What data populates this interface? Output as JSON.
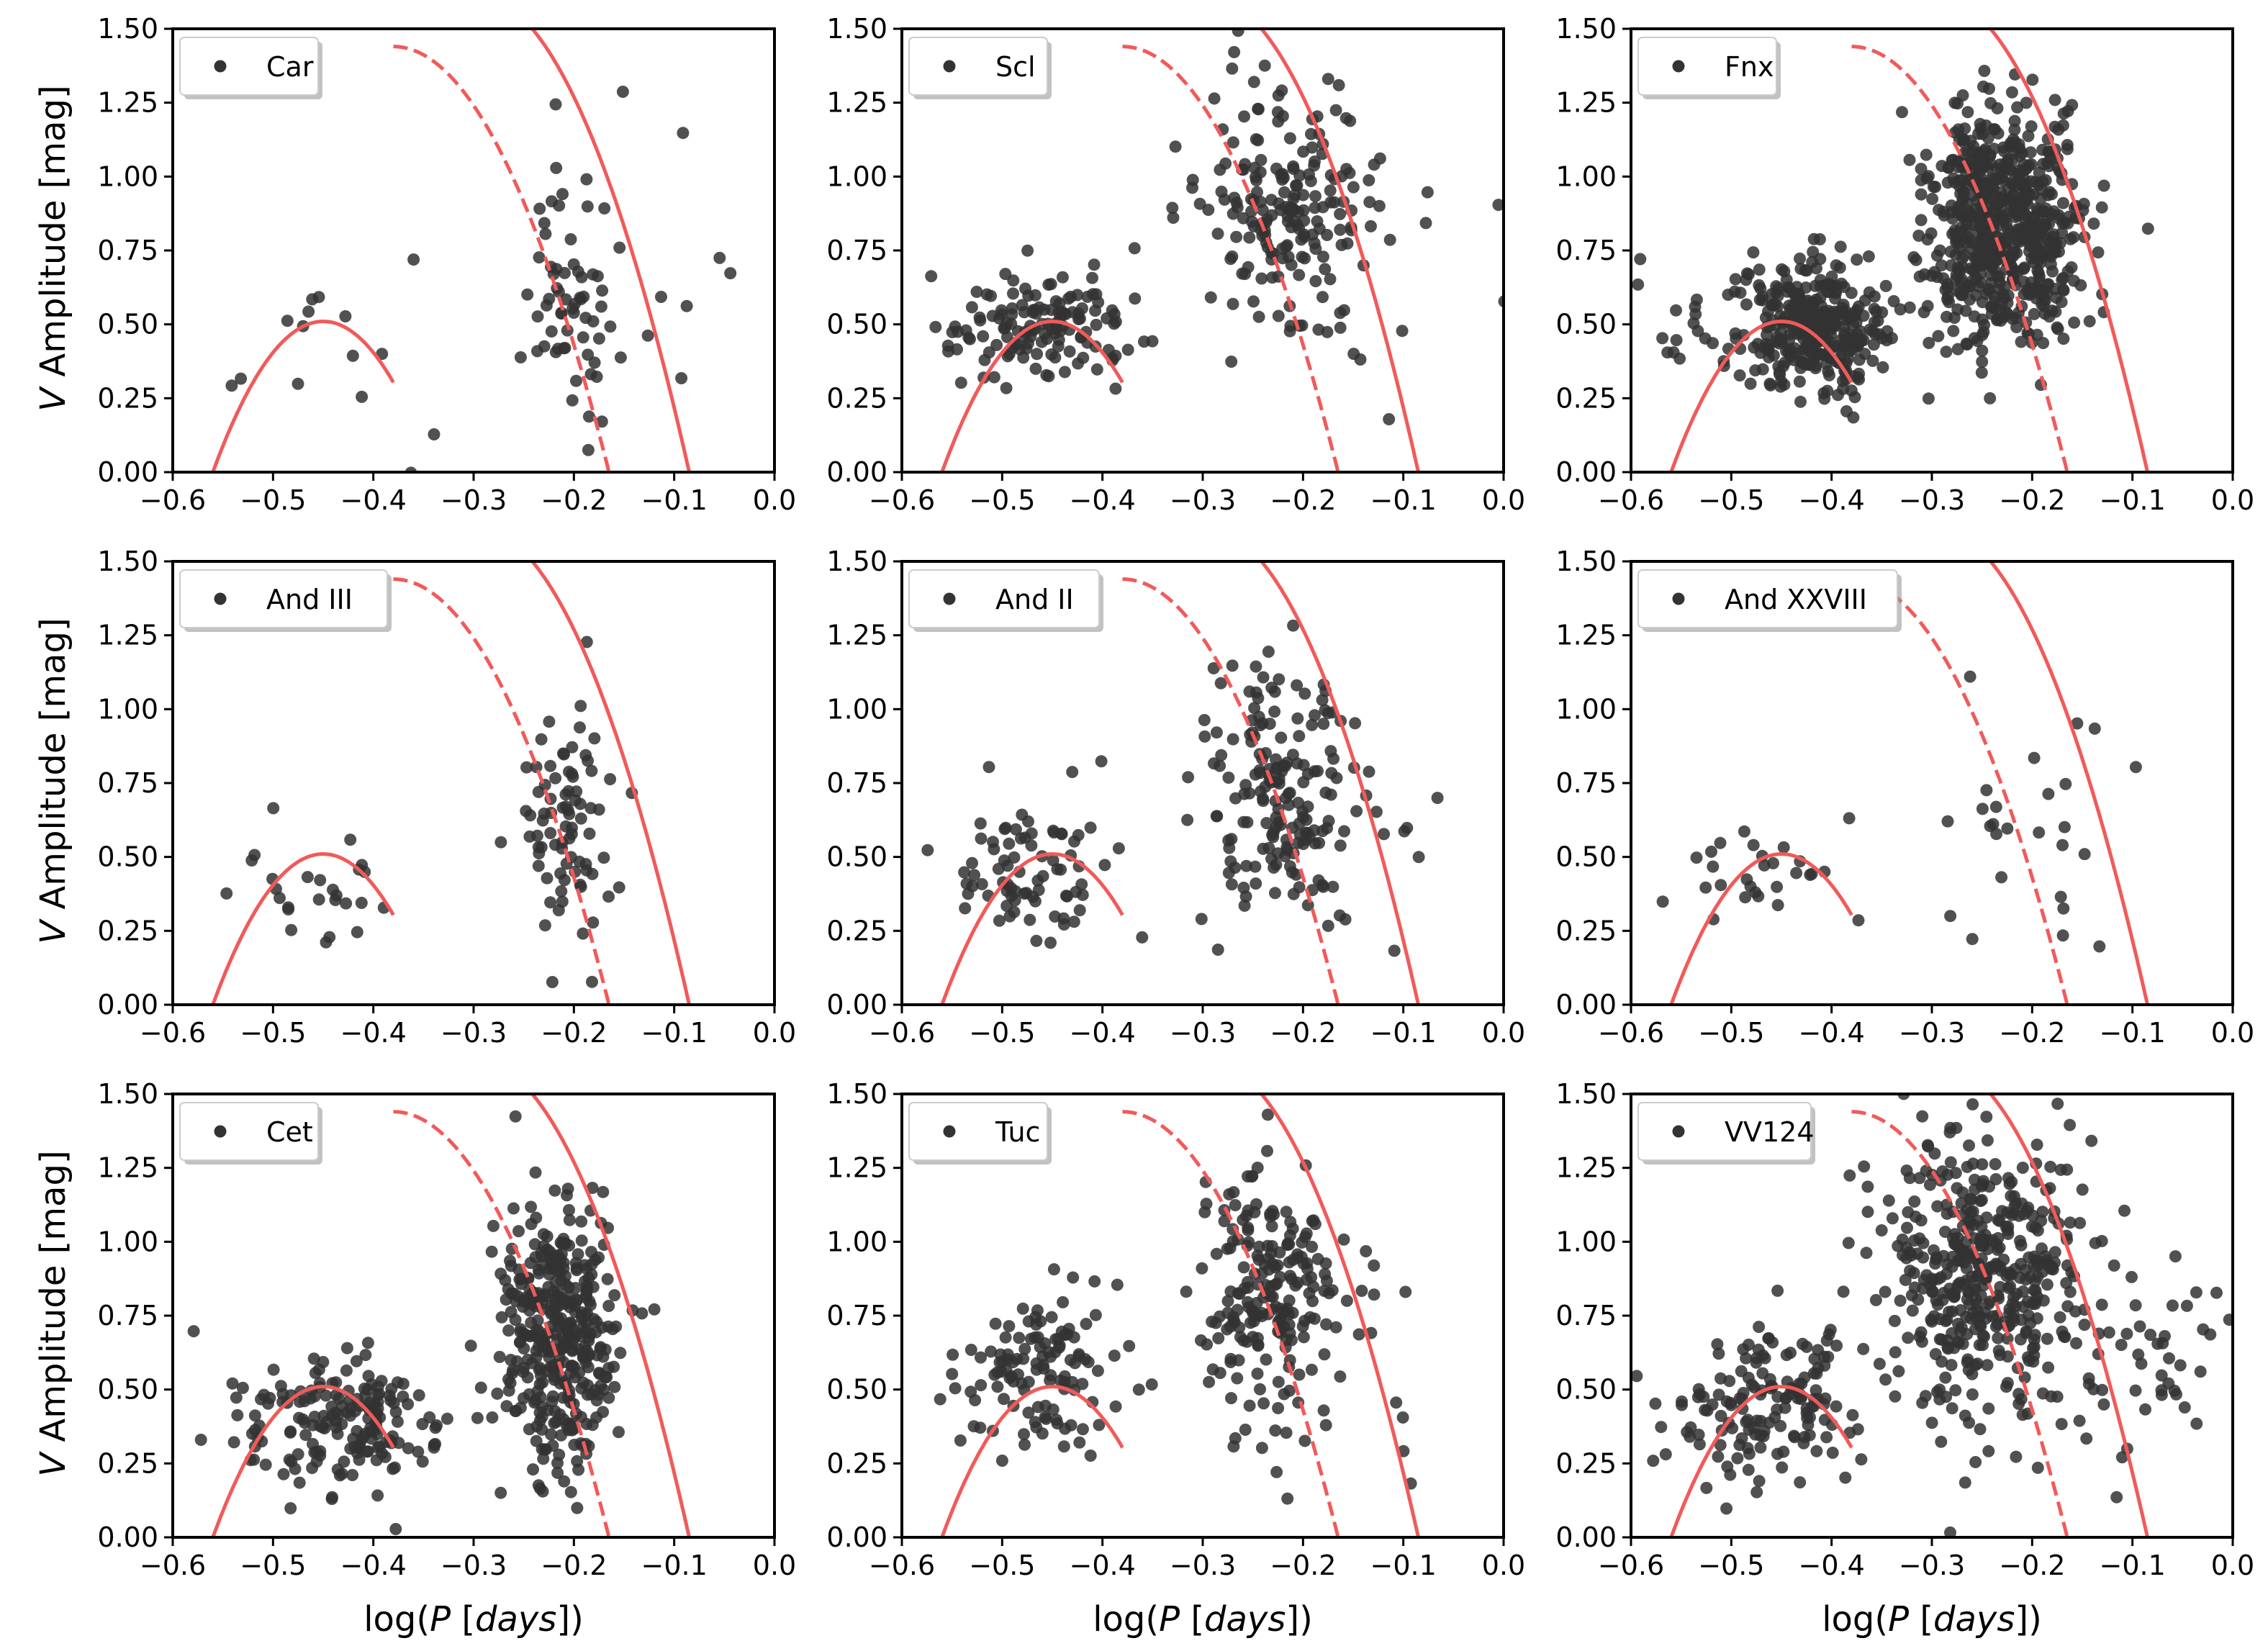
{
  "figure": {
    "ylabel_prefix": "V",
    "ylabel_rest": " Amplitude [mag]",
    "xlabel_pre": "log(",
    "xlabel_P": "P",
    "xlabel_mid": " [",
    "xlabel_days": "days",
    "xlabel_post": "])"
  },
  "colors": {
    "points": "#333333",
    "curve": "#f15a5a",
    "frame": "#000000"
  },
  "chart_data": [
    {
      "type": "scatter",
      "legend": "Car",
      "xlim": [
        -0.6,
        0.0
      ],
      "ylim": [
        0.0,
        1.5
      ],
      "xticks": [
        "−0.6",
        "−0.5",
        "−0.4",
        "−0.3",
        "−0.2",
        "−0.1",
        "0.0"
      ],
      "yticks": [
        "0.00",
        "0.25",
        "0.50",
        "0.75",
        "1.00",
        "1.25",
        "1.50"
      ],
      "curves": {
        "oo1_parabola": {
          "x_range": [
            -0.56,
            -0.38
          ],
          "vertex_x": -0.45,
          "vertex_y": 0.51
        },
        "oo1_steep_dashed": {
          "x_range": [
            -0.38,
            -0.165
          ]
        },
        "oo2_steep_solid": {
          "x_range": [
            -0.3,
            -0.085
          ]
        }
      },
      "seed": 101,
      "clusters": [
        {
          "n": 16,
          "cx": -0.45,
          "cy": 0.35,
          "sx": 0.055,
          "sy": 0.18
        },
        {
          "n": 58,
          "cx": -0.205,
          "cy": 0.6,
          "sx": 0.022,
          "sy": 0.22
        },
        {
          "n": 14,
          "cx": -0.12,
          "cy": 0.7,
          "sx": 0.08,
          "sy": 0.28
        }
      ]
    },
    {
      "type": "scatter",
      "legend": "Scl",
      "xlim": [
        -0.6,
        0.0
      ],
      "ylim": [
        0.0,
        1.5
      ],
      "xticks": [
        "−0.6",
        "−0.5",
        "−0.4",
        "−0.3",
        "−0.2",
        "−0.1",
        "0.0"
      ],
      "yticks": [
        "0.00",
        "0.25",
        "0.50",
        "0.75",
        "1.00",
        "1.25",
        "1.50"
      ],
      "curves": {
        "oo1_parabola": {
          "x_range": [
            -0.56,
            -0.38
          ],
          "vertex_x": -0.45,
          "vertex_y": 0.51
        },
        "oo1_steep_dashed": {
          "x_range": [
            -0.38,
            -0.165
          ]
        },
        "oo2_steep_solid": {
          "x_range": [
            -0.3,
            -0.085
          ]
        }
      },
      "seed": 202,
      "clusters": [
        {
          "n": 140,
          "cx": -0.46,
          "cy": 0.49,
          "sx": 0.045,
          "sy": 0.09
        },
        {
          "n": 190,
          "cx": -0.22,
          "cy": 0.9,
          "sx": 0.045,
          "sy": 0.22
        },
        {
          "n": 12,
          "cx": -0.1,
          "cy": 0.55,
          "sx": 0.06,
          "sy": 0.3
        }
      ]
    },
    {
      "type": "scatter",
      "legend": "Fnx",
      "xlim": [
        -0.6,
        0.0
      ],
      "ylim": [
        0.0,
        1.5
      ],
      "xticks": [
        "−0.6",
        "−0.5",
        "−0.4",
        "−0.3",
        "−0.2",
        "−0.1",
        "0.0"
      ],
      "yticks": [
        "0.00",
        "0.25",
        "0.50",
        "0.75",
        "1.00",
        "1.25",
        "1.50"
      ],
      "curves": {
        "oo1_parabola": {
          "x_range": [
            -0.56,
            -0.38
          ],
          "vertex_x": -0.45,
          "vertex_y": 0.51
        },
        "oo1_steep_dashed": {
          "x_range": [
            -0.38,
            -0.165
          ]
        },
        "oo2_steep_solid": {
          "x_range": [
            -0.3,
            -0.085
          ]
        }
      },
      "seed": 303,
      "clusters": [
        {
          "n": 330,
          "cx": -0.42,
          "cy": 0.5,
          "sx": 0.035,
          "sy": 0.11
        },
        {
          "n": 650,
          "cx": -0.23,
          "cy": 0.82,
          "sx": 0.04,
          "sy": 0.2
        },
        {
          "n": 20,
          "cx": -0.53,
          "cy": 0.5,
          "sx": 0.04,
          "sy": 0.08
        }
      ]
    },
    {
      "type": "scatter",
      "legend": "And III",
      "xlim": [
        -0.6,
        0.0
      ],
      "ylim": [
        0.0,
        1.5
      ],
      "xticks": [
        "−0.6",
        "−0.5",
        "−0.4",
        "−0.3",
        "−0.2",
        "−0.1",
        "0.0"
      ],
      "yticks": [
        "0.00",
        "0.25",
        "0.50",
        "0.75",
        "1.00",
        "1.25",
        "1.50"
      ],
      "curves": {
        "oo1_parabola": {
          "x_range": [
            -0.56,
            -0.38
          ],
          "vertex_x": -0.45,
          "vertex_y": 0.51
        },
        "oo1_steep_dashed": {
          "x_range": [
            -0.38,
            -0.165
          ]
        },
        "oo2_steep_solid": {
          "x_range": [
            -0.3,
            -0.085
          ]
        }
      },
      "seed": 404,
      "clusters": [
        {
          "n": 26,
          "cx": -0.45,
          "cy": 0.42,
          "sx": 0.05,
          "sy": 0.1
        },
        {
          "n": 75,
          "cx": -0.215,
          "cy": 0.6,
          "sx": 0.025,
          "sy": 0.18
        },
        {
          "n": 6,
          "cx": -0.15,
          "cy": 0.6,
          "sx": 0.05,
          "sy": 0.2
        }
      ]
    },
    {
      "type": "scatter",
      "legend": "And II",
      "xlim": [
        -0.6,
        0.0
      ],
      "ylim": [
        0.0,
        1.5
      ],
      "xticks": [
        "−0.6",
        "−0.5",
        "−0.4",
        "−0.3",
        "−0.2",
        "−0.1",
        "0.0"
      ],
      "yticks": [
        "0.00",
        "0.25",
        "0.50",
        "0.75",
        "1.00",
        "1.25",
        "1.50"
      ],
      "curves": {
        "oo1_parabola": {
          "x_range": [
            -0.56,
            -0.38
          ],
          "vertex_x": -0.45,
          "vertex_y": 0.51
        },
        "oo1_steep_dashed": {
          "x_range": [
            -0.38,
            -0.165
          ]
        },
        "oo2_steep_solid": {
          "x_range": [
            -0.3,
            -0.085
          ]
        }
      },
      "seed": 505,
      "clusters": [
        {
          "n": 80,
          "cx": -0.47,
          "cy": 0.45,
          "sx": 0.045,
          "sy": 0.12
        },
        {
          "n": 175,
          "cx": -0.22,
          "cy": 0.72,
          "sx": 0.04,
          "sy": 0.22
        },
        {
          "n": 8,
          "cx": -0.14,
          "cy": 0.5,
          "sx": 0.05,
          "sy": 0.25
        }
      ]
    },
    {
      "type": "scatter",
      "legend": "And XXVIII",
      "xlim": [
        -0.6,
        0.0
      ],
      "ylim": [
        0.0,
        1.5
      ],
      "xticks": [
        "−0.6",
        "−0.5",
        "−0.4",
        "−0.3",
        "−0.2",
        "−0.1",
        "0.0"
      ],
      "yticks": [
        "0.00",
        "0.25",
        "0.50",
        "0.75",
        "1.00",
        "1.25",
        "1.50"
      ],
      "curves": {
        "oo1_parabola": {
          "x_range": [
            -0.56,
            -0.38
          ],
          "vertex_x": -0.45,
          "vertex_y": 0.51
        },
        "oo1_steep_dashed": {
          "x_range": [
            -0.38,
            -0.165
          ]
        },
        "oo2_steep_solid": {
          "x_range": [
            -0.3,
            -0.085
          ]
        }
      },
      "seed": 606,
      "clusters": [
        {
          "n": 28,
          "cx": -0.46,
          "cy": 0.43,
          "sx": 0.045,
          "sy": 0.08
        },
        {
          "n": 26,
          "cx": -0.2,
          "cy": 0.7,
          "sx": 0.045,
          "sy": 0.25
        }
      ]
    },
    {
      "type": "scatter",
      "legend": "Cet",
      "xlim": [
        -0.6,
        0.0
      ],
      "ylim": [
        0.0,
        1.5
      ],
      "xticks": [
        "−0.6",
        "−0.5",
        "−0.4",
        "−0.3",
        "−0.2",
        "−0.1",
        "0.0"
      ],
      "yticks": [
        "0.00",
        "0.25",
        "0.50",
        "0.75",
        "1.00",
        "1.25",
        "1.50"
      ],
      "curves": {
        "oo1_parabola": {
          "x_range": [
            -0.56,
            -0.38
          ],
          "vertex_x": -0.45,
          "vertex_y": 0.51
        },
        "oo1_steep_dashed": {
          "x_range": [
            -0.38,
            -0.165
          ]
        },
        "oo2_steep_solid": {
          "x_range": [
            -0.3,
            -0.085
          ]
        }
      },
      "seed": 707,
      "clusters": [
        {
          "n": 160,
          "cx": -0.42,
          "cy": 0.38,
          "sx": 0.04,
          "sy": 0.12
        },
        {
          "n": 380,
          "cx": -0.215,
          "cy": 0.7,
          "sx": 0.03,
          "sy": 0.24
        },
        {
          "n": 18,
          "cx": -0.52,
          "cy": 0.38,
          "sx": 0.03,
          "sy": 0.12
        }
      ]
    },
    {
      "type": "scatter",
      "legend": "Tuc",
      "xlim": [
        -0.6,
        0.0
      ],
      "ylim": [
        0.0,
        1.5
      ],
      "xticks": [
        "−0.6",
        "−0.5",
        "−0.4",
        "−0.3",
        "−0.2",
        "−0.1",
        "0.0"
      ],
      "yticks": [
        "0.00",
        "0.25",
        "0.50",
        "0.75",
        "1.00",
        "1.25",
        "1.50"
      ],
      "curves": {
        "oo1_parabola": {
          "x_range": [
            -0.56,
            -0.38
          ],
          "vertex_x": -0.45,
          "vertex_y": 0.51
        },
        "oo1_steep_dashed": {
          "x_range": [
            -0.38,
            -0.165
          ]
        },
        "oo2_steep_solid": {
          "x_range": [
            -0.3,
            -0.085
          ]
        }
      },
      "seed": 808,
      "clusters": [
        {
          "n": 120,
          "cx": -0.46,
          "cy": 0.55,
          "sx": 0.04,
          "sy": 0.14
        },
        {
          "n": 210,
          "cx": -0.23,
          "cy": 0.82,
          "sx": 0.04,
          "sy": 0.2
        },
        {
          "n": 8,
          "cx": -0.12,
          "cy": 0.5,
          "sx": 0.05,
          "sy": 0.2
        }
      ]
    },
    {
      "type": "scatter",
      "legend": "VV124",
      "xlim": [
        -0.6,
        0.0
      ],
      "ylim": [
        0.0,
        1.5
      ],
      "xticks": [
        "−0.6",
        "−0.5",
        "−0.4",
        "−0.3",
        "−0.2",
        "−0.1",
        "0.0"
      ],
      "yticks": [
        "0.00",
        "0.25",
        "0.50",
        "0.75",
        "1.00",
        "1.25",
        "1.50"
      ],
      "curves": {
        "oo1_parabola": {
          "x_range": [
            -0.56,
            -0.38
          ],
          "vertex_x": -0.45,
          "vertex_y": 0.51
        },
        "oo1_steep_dashed": {
          "x_range": [
            -0.38,
            -0.165
          ]
        },
        "oo2_steep_solid": {
          "x_range": [
            -0.3,
            -0.085
          ]
        }
      },
      "seed": 909,
      "clusters": [
        {
          "n": 150,
          "cx": -0.46,
          "cy": 0.45,
          "sx": 0.05,
          "sy": 0.13
        },
        {
          "n": 430,
          "cx": -0.25,
          "cy": 0.9,
          "sx": 0.05,
          "sy": 0.25
        },
        {
          "n": 60,
          "cx": -0.12,
          "cy": 0.55,
          "sx": 0.08,
          "sy": 0.2
        }
      ]
    }
  ]
}
